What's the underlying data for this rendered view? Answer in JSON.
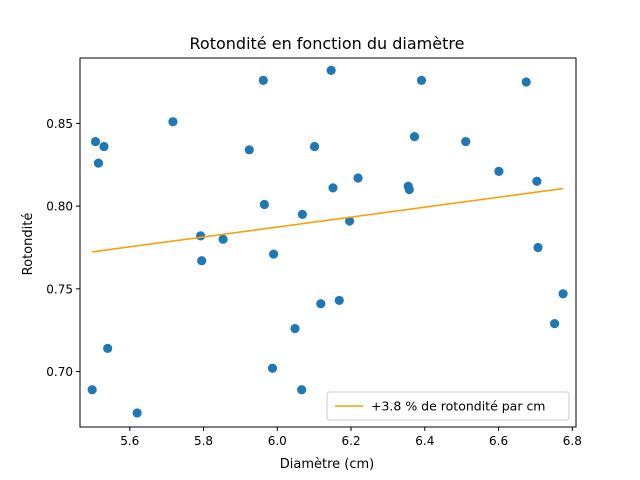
{
  "chart_data": {
    "type": "scatter",
    "title": "Rotondité en fonction du diamètre",
    "xlabel": "Diamètre (cm)",
    "ylabel": "Rotondité",
    "xlim": [
      5.465,
      6.81
    ],
    "ylim": [
      0.6665,
      0.8895
    ],
    "xticks": [
      5.6,
      5.8,
      6.0,
      6.2,
      6.4,
      6.6,
      6.8
    ],
    "xtick_labels": [
      "5.6",
      "5.8",
      "6.0",
      "6.2",
      "6.4",
      "6.6",
      "6.8"
    ],
    "yticks": [
      0.7,
      0.75,
      0.8,
      0.85
    ],
    "ytick_labels": [
      "0.70",
      "0.75",
      "0.80",
      "0.85"
    ],
    "grid": false,
    "legend_position": "lower-right",
    "colors": {
      "points": "#1f77b4",
      "trend": "#f5a30a"
    },
    "points": [
      {
        "x": 5.498,
        "y": 0.689
      },
      {
        "x": 5.507,
        "y": 0.839
      },
      {
        "x": 5.515,
        "y": 0.826
      },
      {
        "x": 5.53,
        "y": 0.836
      },
      {
        "x": 5.54,
        "y": 0.714
      },
      {
        "x": 5.62,
        "y": 0.675
      },
      {
        "x": 5.717,
        "y": 0.851
      },
      {
        "x": 5.792,
        "y": 0.782
      },
      {
        "x": 5.795,
        "y": 0.767
      },
      {
        "x": 5.853,
        "y": 0.78
      },
      {
        "x": 5.924,
        "y": 0.834
      },
      {
        "x": 5.962,
        "y": 0.876
      },
      {
        "x": 5.965,
        "y": 0.801
      },
      {
        "x": 5.987,
        "y": 0.702
      },
      {
        "x": 5.99,
        "y": 0.771
      },
      {
        "x": 6.048,
        "y": 0.726
      },
      {
        "x": 6.066,
        "y": 0.689
      },
      {
        "x": 6.068,
        "y": 0.795
      },
      {
        "x": 6.101,
        "y": 0.836
      },
      {
        "x": 6.118,
        "y": 0.741
      },
      {
        "x": 6.146,
        "y": 0.882
      },
      {
        "x": 6.151,
        "y": 0.811
      },
      {
        "x": 6.168,
        "y": 0.743
      },
      {
        "x": 6.196,
        "y": 0.791
      },
      {
        "x": 6.219,
        "y": 0.817
      },
      {
        "x": 6.355,
        "y": 0.812
      },
      {
        "x": 6.358,
        "y": 0.81
      },
      {
        "x": 6.372,
        "y": 0.842
      },
      {
        "x": 6.391,
        "y": 0.876
      },
      {
        "x": 6.511,
        "y": 0.839
      },
      {
        "x": 6.601,
        "y": 0.821
      },
      {
        "x": 6.675,
        "y": 0.875
      },
      {
        "x": 6.704,
        "y": 0.815
      },
      {
        "x": 6.707,
        "y": 0.775
      },
      {
        "x": 6.752,
        "y": 0.729
      },
      {
        "x": 6.775,
        "y": 0.747
      }
    ],
    "trend_line": {
      "label": "+3.8 % de rotondité par cm",
      "x": [
        5.498,
        6.775
      ],
      "y": [
        0.7723,
        0.8106
      ]
    }
  }
}
